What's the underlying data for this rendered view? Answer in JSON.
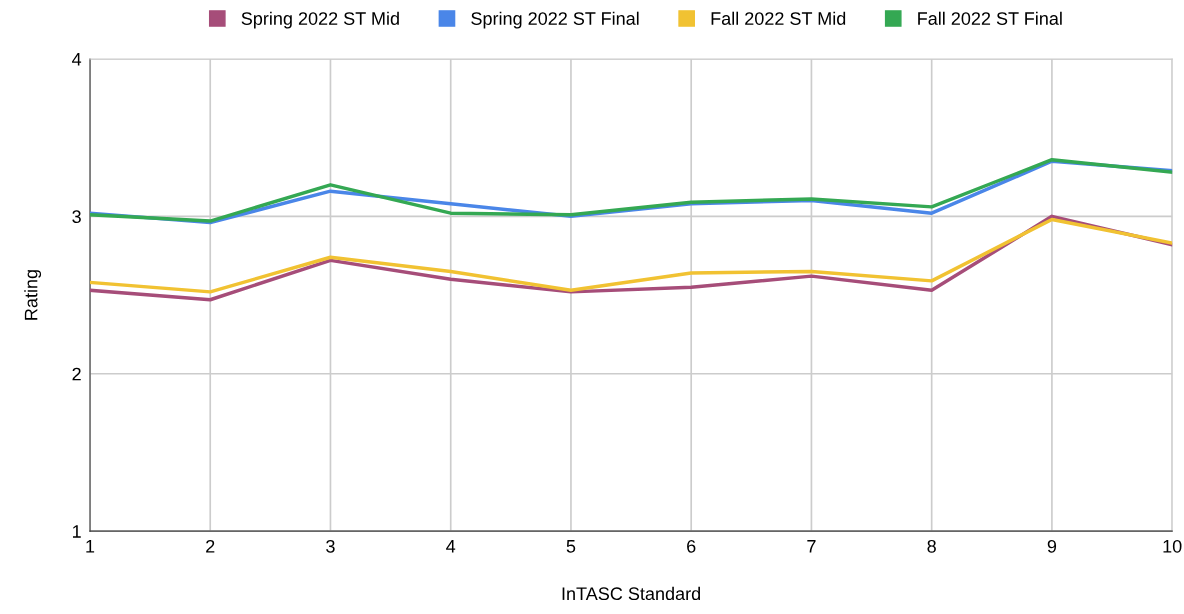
{
  "chart_data": {
    "type": "line",
    "xlabel": "InTASC Standard",
    "ylabel": "Rating",
    "x": [
      1,
      2,
      3,
      4,
      5,
      6,
      7,
      8,
      9,
      10
    ],
    "series": [
      {
        "name": "Spring 2022 ST Mid",
        "color": "#a64d79",
        "values": [
          2.53,
          2.47,
          2.72,
          2.6,
          2.52,
          2.55,
          2.62,
          2.53,
          3.0,
          2.82
        ]
      },
      {
        "name": "Spring 2022 ST Final",
        "color": "#4a86e8",
        "values": [
          3.02,
          2.96,
          3.16,
          3.08,
          3.0,
          3.08,
          3.1,
          3.02,
          3.35,
          3.29
        ]
      },
      {
        "name": "Fall 2022 ST Mid",
        "color": "#f1c232",
        "values": [
          2.58,
          2.52,
          2.74,
          2.65,
          2.53,
          2.64,
          2.65,
          2.59,
          2.98,
          2.83
        ]
      },
      {
        "name": "Fall 2022 ST Final",
        "color": "#34a853",
        "values": [
          3.01,
          2.97,
          3.2,
          3.02,
          3.01,
          3.09,
          3.11,
          3.06,
          3.36,
          3.28
        ]
      }
    ],
    "xlim": [
      1,
      10
    ],
    "xticks": [
      1,
      2,
      3,
      4,
      5,
      6,
      7,
      8,
      9,
      10
    ],
    "ylim": [
      1,
      4
    ],
    "yticks": [
      1,
      2,
      3,
      4
    ],
    "grid": true,
    "legend": "top",
    "marker": "none",
    "line_style": "solid"
  }
}
